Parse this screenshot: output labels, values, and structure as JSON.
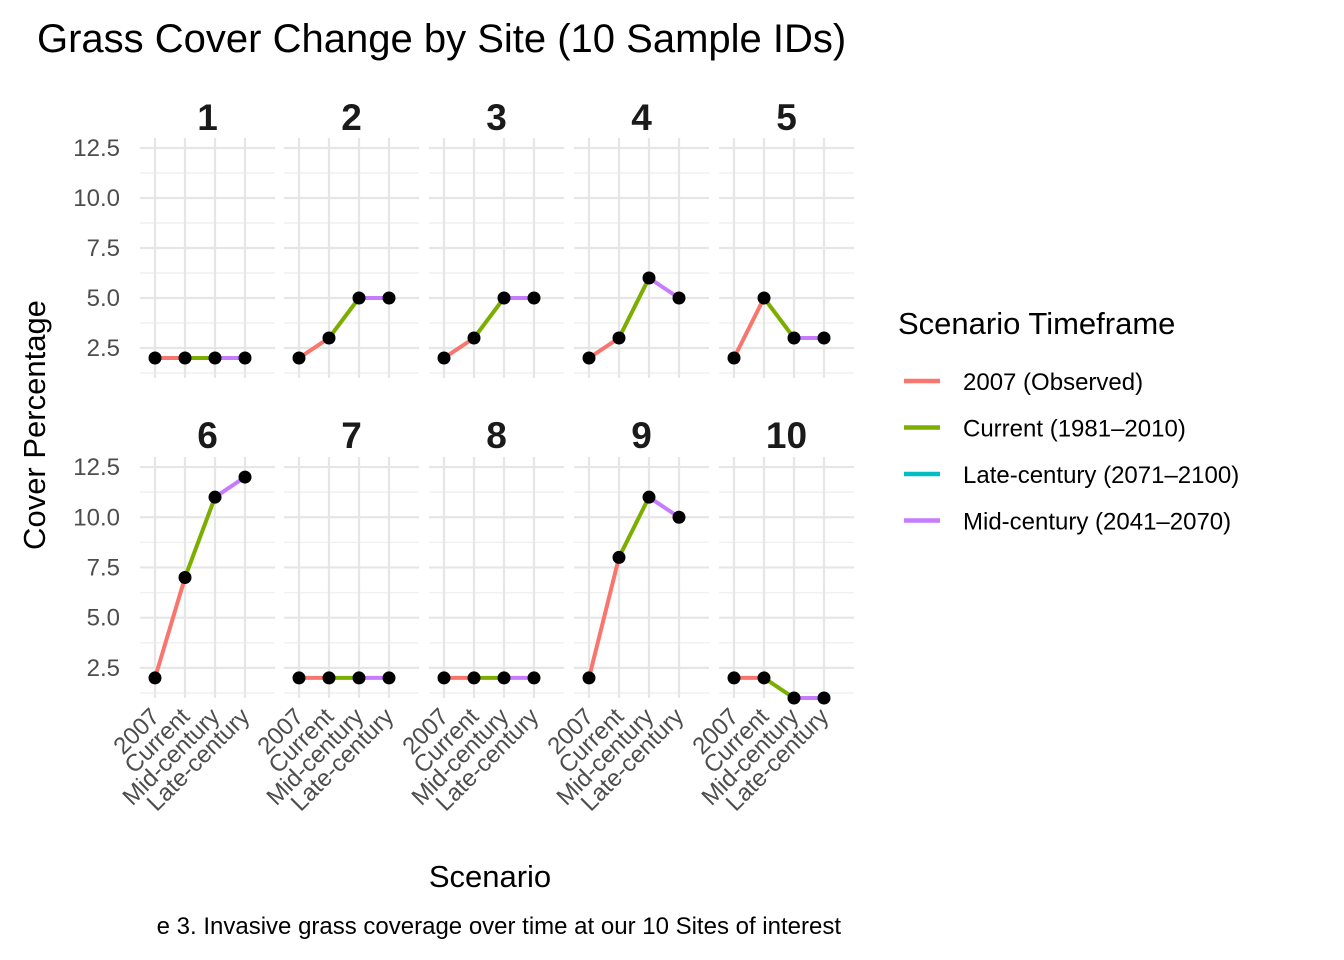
{
  "chart_data": {
    "type": "line",
    "title": "Grass Cover Change by Site (10 Sample IDs)",
    "xlabel": "Scenario",
    "ylabel": "Cover Percentage",
    "caption": "e 3. Invasive grass coverage over time at our 10 Sites of interest",
    "categories": [
      "2007",
      "Current",
      "Mid-century",
      "Late-century"
    ],
    "ylim": [
      1,
      13
    ],
    "yticks": [
      "2.5",
      "5.0",
      "7.5",
      "10.0",
      "12.5"
    ],
    "grid": true,
    "legend": {
      "title": "Scenario Timeframe",
      "placement": "right",
      "entries": [
        {
          "label": "2007 (Observed)",
          "color": "#F8766D"
        },
        {
          "label": "Current (1981–2010)",
          "color": "#7CAE00"
        },
        {
          "label": "Late-century (2071–2100)",
          "color": "#00BFC4"
        },
        {
          "label": "Mid-century (2041–2070)",
          "color": "#C77CFF"
        }
      ]
    },
    "segment_colors": [
      "#F8766D",
      "#7CAE00",
      "#C77CFF"
    ],
    "point_color": "#000000",
    "facets": [
      {
        "label": "1",
        "values": [
          2,
          2,
          2,
          2
        ]
      },
      {
        "label": "2",
        "values": [
          2,
          3,
          5,
          5
        ]
      },
      {
        "label": "3",
        "values": [
          2,
          3,
          5,
          5
        ]
      },
      {
        "label": "4",
        "values": [
          2,
          3,
          6,
          5
        ]
      },
      {
        "label": "5",
        "values": [
          2,
          5,
          3,
          3
        ]
      },
      {
        "label": "6",
        "values": [
          2,
          7,
          11,
          12
        ]
      },
      {
        "label": "7",
        "values": [
          2,
          2,
          2,
          2
        ]
      },
      {
        "label": "8",
        "values": [
          2,
          2,
          2,
          2
        ]
      },
      {
        "label": "9",
        "values": [
          2,
          8,
          11,
          10
        ]
      },
      {
        "label": "10",
        "values": [
          2,
          2,
          1,
          1
        ]
      }
    ]
  }
}
